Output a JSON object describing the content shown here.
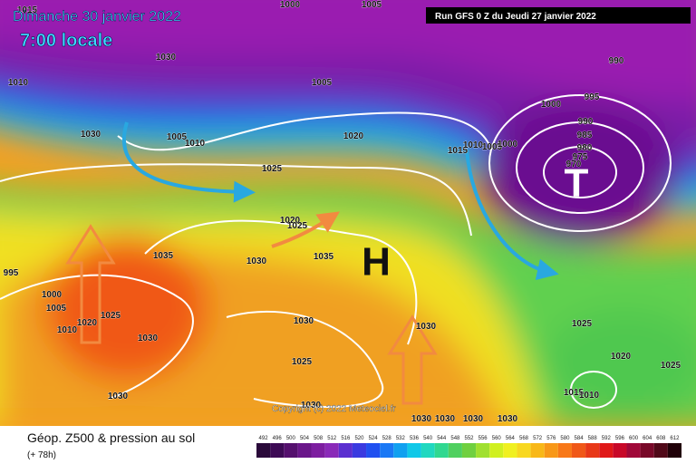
{
  "header": {
    "date": "Dimanche 30 janvier 2022",
    "time": "7:00 locale",
    "run": "Run GFS 0 Z du Jeudi 27 janvier 2022"
  },
  "map": {
    "high_label": "H",
    "low_label": "T",
    "copyright": "Copyright (c) 2022 Meteociel.fr",
    "isobar_labels": [
      1015,
      1000,
      1005,
      1010,
      1030,
      1005,
      1030,
      1005,
      1010,
      1020,
      1015,
      1010,
      1005,
      1000,
      990,
      995,
      1000,
      990,
      985,
      980,
      975,
      970,
      1025,
      1020,
      1025,
      1035,
      1030,
      1035,
      995,
      1000,
      1005,
      1010,
      1020,
      1025,
      1030,
      1030,
      1030,
      1025,
      1030,
      1030,
      1025,
      1020,
      1025,
      1015,
      1010,
      1030,
      1030,
      1030,
      1030
    ]
  },
  "footer": {
    "title": "Géop. Z500 & pression au sol",
    "lead": "(+ 78h)"
  },
  "legend": {
    "ticks": [
      492,
      496,
      500,
      504,
      508,
      512,
      516,
      520,
      524,
      528,
      532,
      536,
      540,
      544,
      548,
      552,
      556,
      560,
      564,
      568,
      572,
      576,
      580,
      584,
      588,
      592,
      596,
      600,
      604,
      608,
      612
    ],
    "colors": [
      "#2a0a3a",
      "#3d0a55",
      "#55106e",
      "#6a168a",
      "#7d1ea0",
      "#8a2ab8",
      "#5b2fd0",
      "#3a3ae0",
      "#2050f0",
      "#1a78f5",
      "#10a0f0",
      "#10c8e8",
      "#20d8c0",
      "#30d890",
      "#50d060",
      "#70d040",
      "#a0e030",
      "#d0f020",
      "#f0f020",
      "#f8d820",
      "#f8b818",
      "#f89818",
      "#f87818",
      "#f05818",
      "#e83818",
      "#e01818",
      "#c80828",
      "#a00838",
      "#780828",
      "#500818",
      "#200008"
    ]
  }
}
